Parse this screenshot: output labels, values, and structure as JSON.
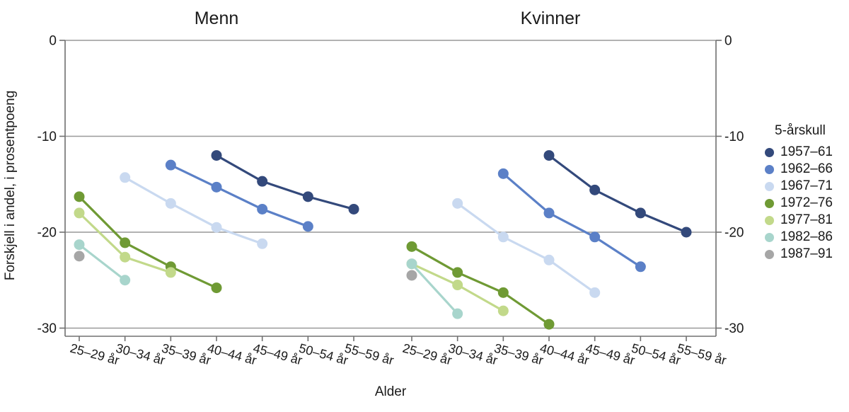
{
  "figure": {
    "background": "#ffffff",
    "text_color": "#1a1a1a",
    "axis_color": "#707070",
    "gridline_color": "#999999"
  },
  "chart_data": {
    "type": "line",
    "xlabel": "Alder",
    "ylabel": "Forskjell i andel, i prosentpoeng",
    "ylim": [
      -31,
      0
    ],
    "grid": "horizontal",
    "yticks": [
      {
        "value": 0,
        "label": "0"
      },
      {
        "value": -10,
        "label": "-10"
      },
      {
        "value": -20,
        "label": "-20"
      },
      {
        "value": -30,
        "label": "-30"
      }
    ],
    "categories": [
      "25–29 år",
      "30–34 år",
      "35–39 år",
      "40–44 år",
      "45–49 år",
      "50–54 år",
      "55–59 år"
    ],
    "legend": {
      "title": "5-årskull",
      "position": "right"
    },
    "cohorts": [
      {
        "name": "1957–61",
        "color": "#33497B"
      },
      {
        "name": "1962–66",
        "color": "#5B80C7"
      },
      {
        "name": "1967–71",
        "color": "#C9D9F0"
      },
      {
        "name": "1972–76",
        "color": "#6F9A34"
      },
      {
        "name": "1977–81",
        "color": "#C2D98A"
      },
      {
        "name": "1982–86",
        "color": "#A8D5CC"
      },
      {
        "name": "1987–91",
        "color": "#A6A6A6"
      }
    ],
    "panels": [
      {
        "title": "Menn",
        "series": [
          {
            "cohort": "1957–61",
            "values": [
              null,
              null,
              null,
              -12.0,
              -14.7,
              -16.3,
              -17.6
            ]
          },
          {
            "cohort": "1962–66",
            "values": [
              null,
              null,
              -13.0,
              -15.3,
              -17.6,
              -19.4,
              null
            ]
          },
          {
            "cohort": "1967–71",
            "values": [
              null,
              -14.3,
              -17.0,
              -19.5,
              -21.2,
              null,
              null
            ]
          },
          {
            "cohort": "1972–76",
            "values": [
              -16.3,
              -21.1,
              -23.6,
              -25.8,
              null,
              null,
              null
            ]
          },
          {
            "cohort": "1977–81",
            "values": [
              -18.0,
              -22.6,
              -24.2,
              null,
              null,
              null,
              null
            ]
          },
          {
            "cohort": "1982–86",
            "values": [
              -21.3,
              -25.0,
              null,
              null,
              null,
              null,
              null
            ]
          },
          {
            "cohort": "1987–91",
            "values": [
              -22.5,
              null,
              null,
              null,
              null,
              null,
              null
            ]
          }
        ]
      },
      {
        "title": "Kvinner",
        "series": [
          {
            "cohort": "1957–61",
            "values": [
              null,
              null,
              null,
              -12.0,
              -15.6,
              -18.0,
              -20.0
            ]
          },
          {
            "cohort": "1962–66",
            "values": [
              null,
              null,
              -13.9,
              -18.0,
              -20.5,
              -23.6,
              null
            ]
          },
          {
            "cohort": "1967–71",
            "values": [
              null,
              -17.0,
              -20.5,
              -22.9,
              -26.3,
              null,
              null
            ]
          },
          {
            "cohort": "1972–76",
            "values": [
              -21.5,
              -24.2,
              -26.3,
              -29.6,
              null,
              null,
              null
            ]
          },
          {
            "cohort": "1977–81",
            "values": [
              -23.3,
              -25.5,
              -28.2,
              null,
              null,
              null,
              null
            ]
          },
          {
            "cohort": "1982–86",
            "values": [
              -23.3,
              -28.5,
              null,
              null,
              null,
              null,
              null
            ]
          },
          {
            "cohort": "1987–91",
            "values": [
              -24.5,
              null,
              null,
              null,
              null,
              null,
              null
            ]
          }
        ]
      }
    ]
  }
}
